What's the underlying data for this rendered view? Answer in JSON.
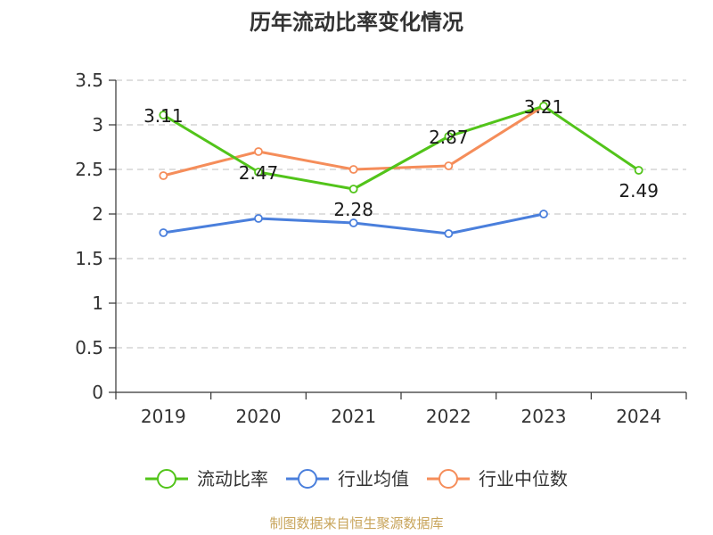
{
  "chart_data": {
    "type": "line",
    "title": "历年流动比率变化情况",
    "categories": [
      "2019",
      "2020",
      "2021",
      "2022",
      "2023",
      "2024"
    ],
    "ylim": [
      0,
      3.5
    ],
    "yticks": [
      "0",
      "0.5",
      "1",
      "1.5",
      "2",
      "2.5",
      "3",
      "3.5"
    ],
    "grid": true,
    "legend_position": "bottom",
    "series": [
      {
        "name": "流动比率",
        "color": "#52c41a",
        "values": [
          3.11,
          2.47,
          2.28,
          2.87,
          3.21,
          2.49
        ],
        "labels": [
          "3.11",
          "2.47",
          "2.28",
          "2.87",
          "3.21",
          "2.49"
        ]
      },
      {
        "name": "行业均值",
        "color": "#4a7fdc",
        "values": [
          1.79,
          1.95,
          1.9,
          1.78,
          2.0,
          null
        ]
      },
      {
        "name": "行业中位数",
        "color": "#f58d5a",
        "values": [
          2.43,
          2.7,
          2.5,
          2.54,
          3.21,
          null
        ]
      }
    ],
    "source": "制图数据来自恒生聚源数据库"
  }
}
